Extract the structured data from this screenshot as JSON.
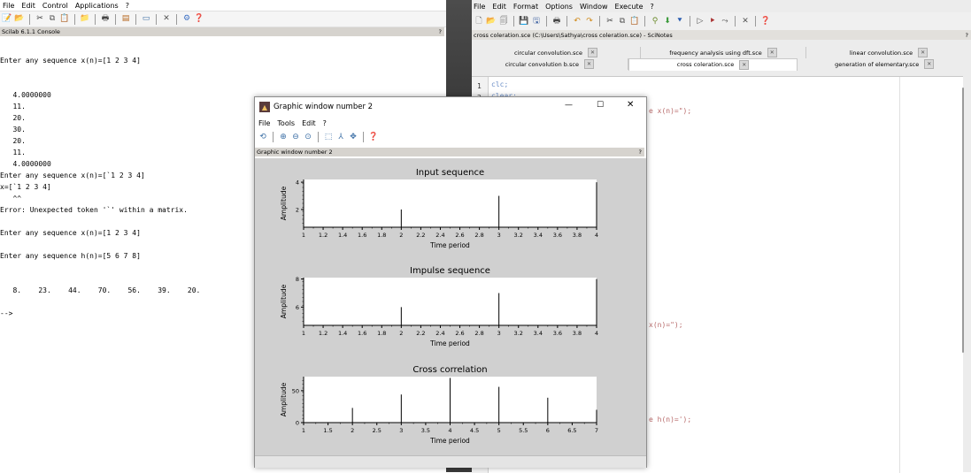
{
  "console": {
    "menu": [
      "File",
      "Edit",
      "Control",
      "Applications",
      "?"
    ],
    "header_title": "Scilab 6.1.1 Console",
    "header_help": "?",
    "lines": [
      "Enter any sequence x(n)=[1 2 3 4]",
      "",
      "",
      "   4.0000000",
      "   11.",
      "   20.",
      "   30.",
      "   20.",
      "   11.",
      "   4.0000000",
      "Enter any sequence x(n)=[`1 2 3 4]",
      "x=[`1 2 3 4]",
      "   ^^",
      "Error: Unexpected token '`' within a matrix.",
      "",
      "Enter any sequence x(n)=[1 2 3 4]",
      "",
      "Enter any sequence h(n)=[5 6 7 8]",
      "",
      "",
      "   8.    23.    44.    70.    56.    39.    20.",
      "",
      "-->"
    ]
  },
  "scinotes": {
    "menu": [
      "File",
      "Edit",
      "Format",
      "Options",
      "Window",
      "Execute",
      "?"
    ],
    "header_title": "cross coleration.sce (C:\\Users\\Sathya\\cross coleration.sce) - SciNotes",
    "header_help": "?",
    "tabs_row1": [
      "circular convolution.sce",
      "frequency analysis using dft.sce",
      "linear convolution.sce"
    ],
    "tabs_row2": [
      "circular convolution b.sce",
      "cross coleration.sce",
      "generation of elementary.sce"
    ],
    "line_numbers": [
      "1",
      "2"
    ],
    "code_line1": "clc;",
    "code_line2": "clear;",
    "code_frag1": "e x(n)=\");",
    "code_frag2": "x(n)=\");",
    "code_frag3": "e h(n)=');"
  },
  "graphic_window": {
    "title": "Graphic window number 2",
    "menu": [
      "File",
      "Tools",
      "Edit",
      "?"
    ],
    "header_title": "Graphic window number 2",
    "header_help": "?",
    "controls": {
      "minimize": "—",
      "maximize": "☐",
      "close": "✕"
    }
  },
  "chart_data": [
    {
      "type": "bar",
      "title": "Input sequence",
      "xlabel": "Time period",
      "ylabel": "Amplitude",
      "x": [
        1,
        2,
        3,
        4
      ],
      "values": [
        1,
        2,
        3,
        4
      ],
      "xlim": [
        1,
        4
      ],
      "ylim": [
        0.7,
        4.2
      ],
      "xticks": [
        "1",
        "1.2",
        "1.4",
        "1.6",
        "1.8",
        "2",
        "2.2",
        "2.4",
        "2.6",
        "2.8",
        "3",
        "3.2",
        "3.4",
        "3.6",
        "3.8",
        "4"
      ],
      "yticks": [
        "2",
        "4"
      ]
    },
    {
      "type": "bar",
      "title": "Impulse sequence",
      "xlabel": "Time period",
      "ylabel": "Amplitude",
      "x": [
        1,
        2,
        3,
        4
      ],
      "values": [
        5,
        6,
        7,
        8
      ],
      "xlim": [
        1,
        4
      ],
      "ylim": [
        4.7,
        8.1
      ],
      "xticks": [
        "1",
        "1.2",
        "1.4",
        "1.6",
        "1.8",
        "2",
        "2.2",
        "2.4",
        "2.6",
        "2.8",
        "3",
        "3.2",
        "3.4",
        "3.6",
        "3.8",
        "4"
      ],
      "yticks": [
        "6",
        "8"
      ]
    },
    {
      "type": "bar",
      "title": "Cross correlation",
      "xlabel": "Time period",
      "ylabel": "Amplitude",
      "x": [
        1,
        2,
        3,
        4,
        5,
        6,
        7
      ],
      "values": [
        8,
        23,
        44,
        70,
        56,
        39,
        20
      ],
      "xlim": [
        1,
        7
      ],
      "ylim": [
        0,
        72
      ],
      "xticks": [
        "1",
        "1.5",
        "2",
        "2.5",
        "3",
        "3.5",
        "4",
        "4.5",
        "5",
        "5.5",
        "6",
        "6.5",
        "7"
      ],
      "yticks": [
        "0",
        "50"
      ]
    }
  ]
}
